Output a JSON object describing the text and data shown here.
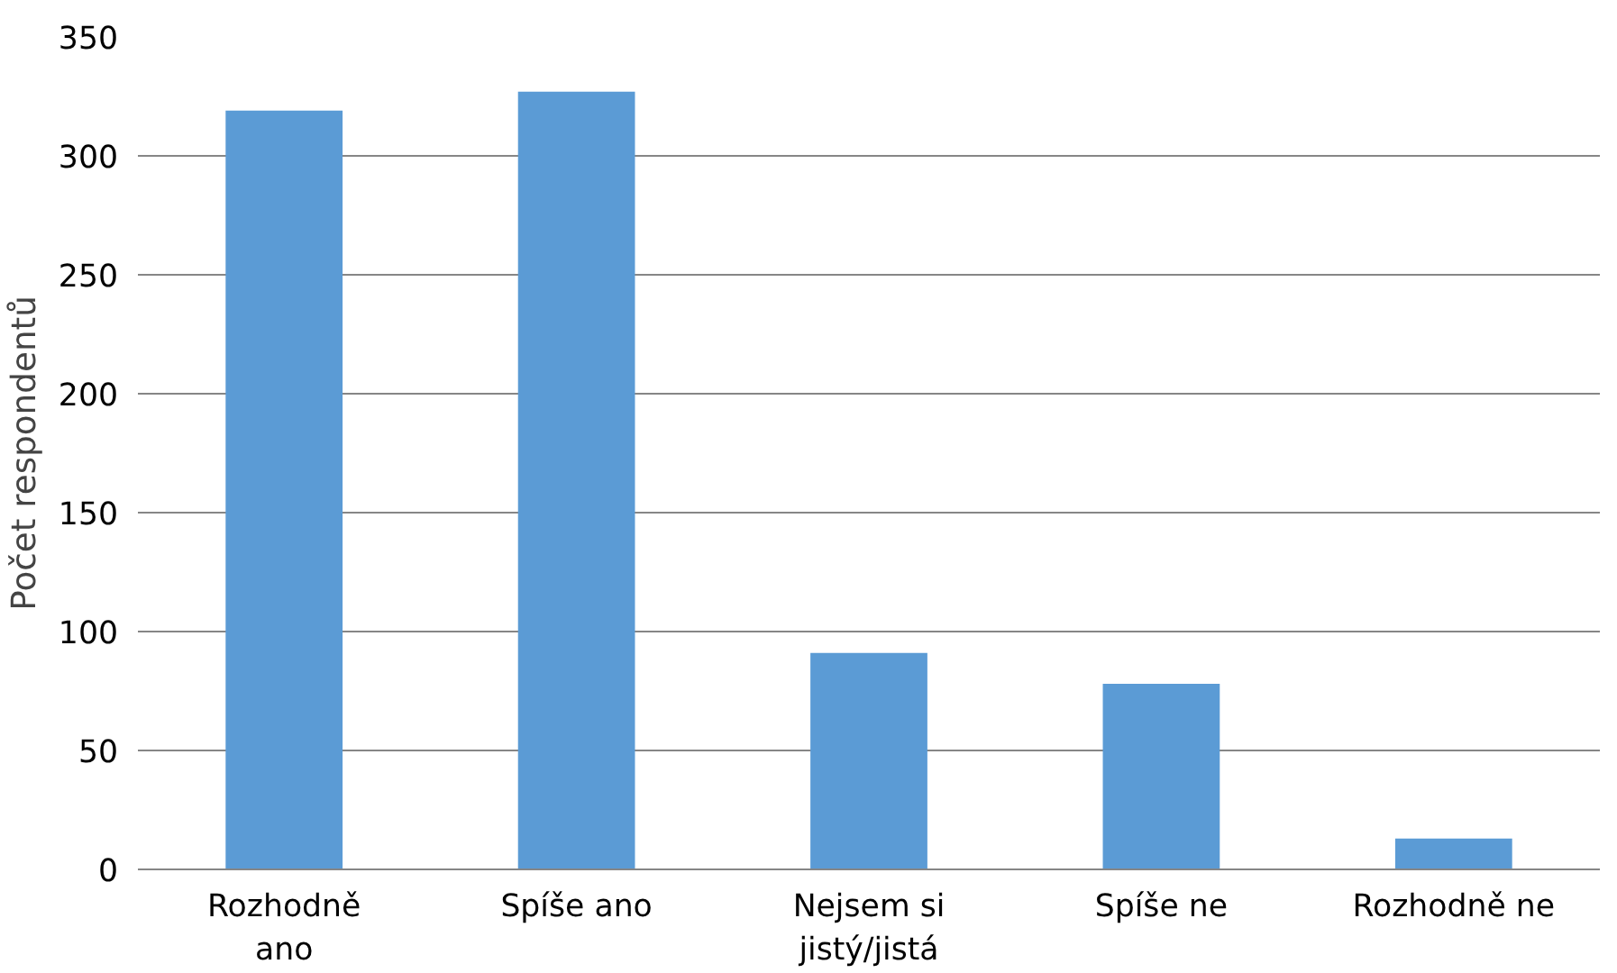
{
  "chart_data": {
    "type": "bar",
    "ylabel": "Počet respondentů",
    "categories": [
      "Rozhodně\nano",
      "Spíše ano",
      "Nejsem si\njistý/jistá",
      "Spíše ne",
      "Rozhodně ne"
    ],
    "values": [
      319,
      327,
      91,
      78,
      13
    ],
    "color": "#5b9bd5",
    "ylim": [
      0,
      350
    ],
    "yticks": [
      0,
      50,
      100,
      150,
      200,
      250,
      300,
      350
    ],
    "grid": "y"
  }
}
